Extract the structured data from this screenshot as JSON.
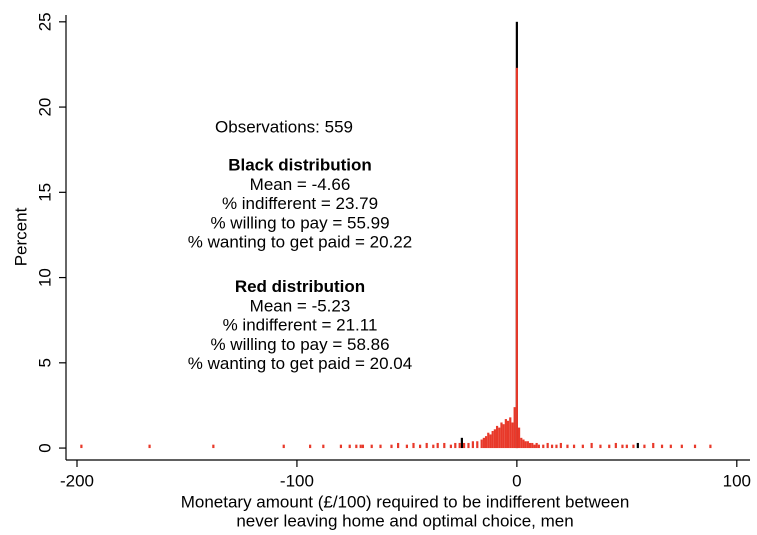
{
  "chart_data": {
    "type": "bar",
    "xlabel": [
      "Monetary amount (£/100) required to be indifferent between",
      "never leaving home and optimal choice, men"
    ],
    "ylabel": "Percent",
    "xlim": [
      -205,
      106
    ],
    "xticks": [
      -200,
      -100,
      0,
      100
    ],
    "ylim": [
      -0.7,
      25.4
    ],
    "yticks": [
      0,
      5,
      10,
      15,
      20,
      25
    ],
    "annotation": {
      "observations": "Observations: 559",
      "groups": [
        {
          "heading": "Black distribution",
          "lines": [
            "Mean = -4.66",
            "% indifferent = 23.79",
            "% willing to pay = 55.99",
            "% wanting to get paid = 20.22"
          ]
        },
        {
          "heading": "Red distribution",
          "lines": [
            "Mean = -5.23",
            "% indifferent = 21.11",
            "% willing to pay = 58.86",
            "% wanting to get paid = 20.04"
          ]
        }
      ]
    },
    "series": [
      {
        "color": "#000000",
        "x": [
          -25,
          0,
          55
        ],
        "values": [
          0.6,
          25.0,
          0.3
        ]
      },
      {
        "color": "#e8392a",
        "x": [
          -198,
          -167,
          -138,
          -106,
          -94,
          -88,
          -80,
          -76,
          -73,
          -71,
          -70,
          -66,
          -62,
          -57,
          -54,
          -50,
          -47,
          -44,
          -41,
          -38,
          -36,
          -33,
          -30,
          -28,
          -26,
          -24,
          -22,
          -20,
          -18,
          -16,
          -15,
          -14,
          -13,
          -12,
          -11,
          -10,
          -9,
          -8,
          -7,
          -6,
          -5,
          -4,
          -3,
          -2,
          -1,
          0,
          1,
          2,
          3,
          4,
          5,
          6,
          7,
          8,
          9,
          10,
          12,
          14,
          16,
          18,
          20,
          23,
          26,
          30,
          34,
          38,
          42,
          45,
          48,
          50,
          53,
          58,
          62,
          66,
          70,
          75,
          81,
          88
        ],
        "values": [
          0.2,
          0.2,
          0.2,
          0.2,
          0.2,
          0.2,
          0.2,
          0.2,
          0.2,
          0.2,
          0.2,
          0.2,
          0.2,
          0.2,
          0.3,
          0.2,
          0.3,
          0.2,
          0.3,
          0.2,
          0.3,
          0.3,
          0.2,
          0.3,
          0.3,
          0.3,
          0.3,
          0.4,
          0.4,
          0.5,
          0.6,
          0.7,
          0.9,
          0.8,
          1.0,
          1.1,
          1.3,
          1.2,
          1.5,
          1.4,
          1.7,
          1.6,
          1.8,
          1.5,
          2.4,
          22.3,
          1.2,
          0.6,
          0.5,
          0.4,
          0.4,
          0.3,
          0.3,
          0.2,
          0.3,
          0.2,
          0.2,
          0.3,
          0.2,
          0.2,
          0.3,
          0.2,
          0.2,
          0.2,
          0.3,
          0.2,
          0.2,
          0.3,
          0.2,
          0.2,
          0.2,
          0.2,
          0.3,
          0.2,
          0.2,
          0.2,
          0.2,
          0.2
        ]
      }
    ]
  }
}
